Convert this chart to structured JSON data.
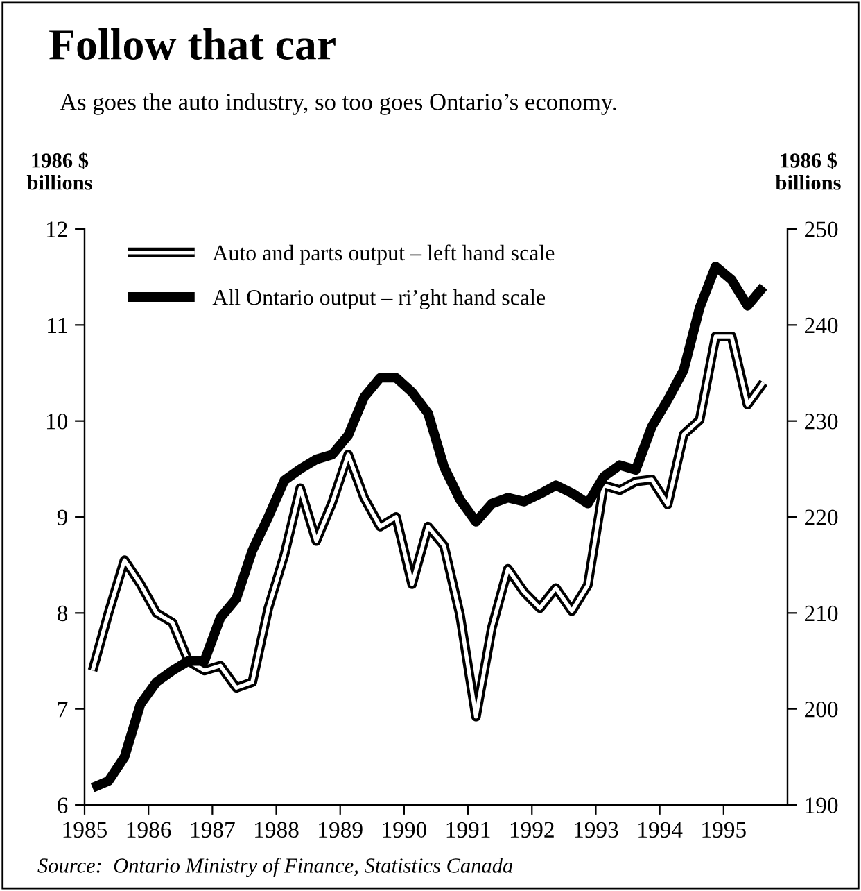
{
  "chart_data": {
    "type": "line",
    "title": "Follow that car",
    "subtitle": "As goes the auto industry, so too goes Ontario’s economy.",
    "ylabel": "1986 $\nbillions",
    "y2label": "1986 $\nbillions",
    "annotations": [
      "Source:  Ontario Ministry of Finance, Statistics Canada"
    ],
    "x": [
      1985.125,
      1985.375,
      1985.625,
      1985.875,
      1986.125,
      1986.375,
      1986.625,
      1986.875,
      1987.125,
      1987.375,
      1987.625,
      1987.875,
      1988.125,
      1988.375,
      1988.625,
      1988.875,
      1989.125,
      1989.375,
      1989.625,
      1989.875,
      1990.125,
      1990.375,
      1990.625,
      1990.875,
      1991.125,
      1991.375,
      1991.625,
      1991.875,
      1992.125,
      1992.375,
      1992.625,
      1992.875,
      1993.125,
      1993.375,
      1993.625,
      1993.875,
      1994.125,
      1994.375,
      1994.625,
      1994.875,
      1995.125,
      1995.375,
      1995.625
    ],
    "series": [
      {
        "name": "Auto and parts output – left hand scale",
        "color": "#000000",
        "values": [
          7.4,
          8.0,
          8.55,
          8.3,
          8.0,
          7.9,
          7.5,
          7.4,
          7.45,
          7.22,
          7.28,
          8.05,
          8.6,
          9.3,
          8.75,
          9.15,
          9.65,
          9.2,
          8.9,
          9.0,
          8.3,
          8.9,
          8.7,
          7.98,
          6.92,
          7.85,
          8.46,
          8.22,
          8.05,
          8.26,
          8.02,
          8.29,
          9.33,
          9.28,
          9.37,
          9.39,
          9.13,
          9.86,
          10.01,
          10.88,
          10.88,
          10.17,
          10.4
        ]
      },
      {
        "name": "All Ontario output – ri’ght hand scale",
        "color": "#000000",
        "axis": "y2",
        "values": [
          191.8,
          192.5,
          195,
          200.5,
          202.8,
          204,
          205,
          205,
          209.5,
          211.5,
          216.5,
          220,
          223.8,
          225,
          226,
          226.5,
          228.5,
          232.5,
          234.5,
          234.5,
          233,
          230.8,
          225.2,
          221.8,
          219.5,
          221.4,
          222,
          221.6,
          222.4,
          223.3,
          222.5,
          221.4,
          224.2,
          225.4,
          224.9,
          229.4,
          232.2,
          235.3,
          241.8,
          246.1,
          244.7,
          242,
          244
        ]
      }
    ],
    "xlim": [
      1985,
      1996
    ],
    "xticks": [
      1985,
      1986,
      1987,
      1988,
      1989,
      1990,
      1991,
      1992,
      1993,
      1994,
      1995
    ],
    "ylim": [
      6,
      12
    ],
    "yticks": [
      6,
      7,
      8,
      9,
      10,
      11,
      12
    ],
    "y2lim": [
      190,
      250
    ],
    "y2ticks": [
      190,
      200,
      210,
      220,
      230,
      240,
      250
    ],
    "legend": "top left",
    "grid": false
  }
}
